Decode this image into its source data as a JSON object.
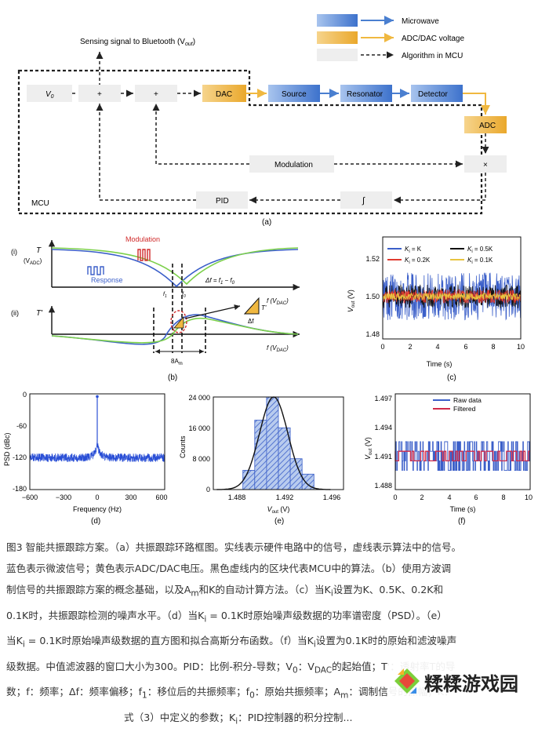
{
  "panel_a": {
    "legend": {
      "microwave": "Microwave",
      "adc_dac": "ADC/DAC voltage",
      "algorithm": "Algorithm in MCU"
    },
    "sensing": "Sensing signal to Bluetooth (V",
    "sensing_sub": "out",
    "sensing_close": ")",
    "v0": "V",
    "v0_sub": "0",
    "plus1": "+",
    "plus2": "+",
    "dac": "DAC",
    "source": "Source",
    "resonator": "Resonator",
    "detector": "Detector",
    "adc": "ADC",
    "modulation": "Modulation",
    "times": "×",
    "mcu": "MCU",
    "pid": "PID",
    "integral": "∫",
    "label": "(a)",
    "colors": {
      "microwave": "#4a7fd0",
      "adc_dac": "#f0b840",
      "box": "#eeeeee"
    }
  },
  "panel_b": {
    "i_label": "(i)",
    "ii_label": "(ii)",
    "T": "T",
    "T_unit": "(V",
    "T_unit_sub": "ADC",
    "T_unit_close": ")",
    "Tprime": "T'",
    "modulation": "Modulation",
    "response": "Response",
    "delta_f": "Δf = f",
    "delta_f_sub1": "1",
    "delta_f_mid": " − f",
    "delta_f_sub2": "0",
    "f1": "f",
    "f1_sub": "1",
    "f0": "f",
    "f0_sub": "0",
    "faxis": "f (V",
    "faxis_sub": "DAC",
    "faxis_close": ")",
    "tri_T": "T'",
    "tri_df": "Δf",
    "width": "8A",
    "width_sub": "m",
    "label": "(b)"
  },
  "panel_c": {
    "ylabel": "V",
    "ylabel_sub": "out",
    "ylabel_unit": " (V)",
    "xlabel": "Time (s)",
    "yticks": [
      "1.52",
      "1.50",
      "1.48"
    ],
    "xticks": [
      "0",
      "2",
      "4",
      "6",
      "8",
      "10"
    ],
    "legend": [
      {
        "name": "K",
        "sub": "i",
        "eq": " = K",
        "color": "#3b5fc9"
      },
      {
        "name": "K",
        "sub": "i",
        "eq": " = 0.5K",
        "color": "#111111"
      },
      {
        "name": "K",
        "sub": "i",
        "eq": " = 0.2K",
        "color": "#e03a2f"
      },
      {
        "name": "K",
        "sub": "i",
        "eq": " = 0.1K",
        "color": "#e8c440"
      }
    ],
    "label": "(c)"
  },
  "panel_d": {
    "ylabel": "PSD (dBc)",
    "xlabel": "Frequency (Hz)",
    "yticks": [
      "0",
      "-60",
      "-120",
      "-180"
    ],
    "xticks": [
      "−600",
      "−300",
      "0",
      "300",
      "600"
    ],
    "label": "(d)"
  },
  "panel_e": {
    "ylabel": "Counts",
    "xlabel": "V",
    "xlabel_sub": "out",
    "xlabel_unit": " (V)",
    "yticks": [
      "24 000",
      "16 000",
      "8 000",
      "0"
    ],
    "xticks": [
      "1.488",
      "1.492",
      "1.496"
    ],
    "label": "(e)"
  },
  "panel_f": {
    "ylabel": "V",
    "ylabel_sub": "out",
    "ylabel_unit": " (V)",
    "xlabel": "Time (s)",
    "yticks": [
      "1.497",
      "1.494",
      "1.491",
      "1.488"
    ],
    "xticks": [
      "0",
      "2",
      "4",
      "6",
      "8",
      "10"
    ],
    "legend": [
      "Raw data",
      "Filtered"
    ],
    "label": "(f)"
  },
  "chart_data": [
    {
      "type": "line",
      "panel": "c",
      "xlabel": "Time (s)",
      "ylabel": "Vout (V)",
      "xlim": [
        0,
        10
      ],
      "ylim": [
        1.47,
        1.53
      ],
      "series": [
        {
          "name": "Ki = K",
          "mean": 1.495,
          "spread": 0.014
        },
        {
          "name": "Ki = 0.5K",
          "mean": 1.495,
          "spread": 0.007
        },
        {
          "name": "Ki = 0.2K",
          "mean": 1.495,
          "spread": 0.004
        },
        {
          "name": "Ki = 0.1K",
          "mean": 1.495,
          "spread": 0.002
        }
      ]
    },
    {
      "type": "line",
      "panel": "d",
      "xlabel": "Frequency (Hz)",
      "ylabel": "PSD (dBc)",
      "xlim": [
        -600,
        600
      ],
      "ylim": [
        -180,
        0
      ],
      "noise_floor": -120,
      "peak": -5
    },
    {
      "type": "bar",
      "panel": "e",
      "xlabel": "Vout (V)",
      "ylabel": "Counts",
      "xlim": [
        1.486,
        1.497
      ],
      "ylim": [
        0,
        24000
      ],
      "bins": [
        1.489,
        1.49,
        1.491,
        1.492,
        1.493,
        1.494
      ],
      "values": [
        5000,
        18000,
        24000,
        16000,
        8000,
        4000
      ],
      "gauss": {
        "mu": 1.4911,
        "sigma": 0.0012,
        "peak": 24000
      }
    },
    {
      "type": "line",
      "panel": "f",
      "xlabel": "Time (s)",
      "ylabel": "Vout (V)",
      "xlim": [
        0,
        10
      ],
      "ylim": [
        1.4875,
        1.4975
      ],
      "levels": [
        1.4895,
        1.4905,
        1.4915,
        1.4925
      ],
      "series": [
        {
          "name": "Raw data"
        },
        {
          "name": "Filtered"
        }
      ]
    }
  ],
  "caption": {
    "line1": "图3 智能共振跟踪方案。（a）共振跟踪环路框图。实线表示硬件电路中的信号，虚线表示算法中的信号。",
    "line2": "蓝色表示微波信号；黄色表示ADC/DAC电压。黑色虚线内的区块代表MCU中的算法。（b）使用方波调",
    "line3": "制信号的共振跟踪方案的概念基础，以及A",
    "line3_sub": "m",
    "line3_b": "和K的自动计算方法。（c）当K",
    "line3_sub2": "i",
    "line3_c": "设置为K、0.5K、0.2K和",
    "line4": "0.1K时，共振跟踪检测的噪声水平。（d）当K",
    "line4_sub": "i",
    "line4_b": " = 0.1K时原始噪声级数据的功率谱密度（PSD）。（e）",
    "line5": "当K",
    "line5_sub": "i",
    "line5_b": " = 0.1K时原始噪声级数据的直方图和拟合高斯分布函数。（f）当K",
    "line5_sub2": "i",
    "line5_c": "设置为0.1K时的原始和滤波噪声",
    "line6": "级数据。中值滤波器的窗口大小为300。PID：比例-积分-导数；V",
    "line6_sub": "0",
    "line6_b": "：V",
    "line6_sub2": "DAC",
    "line6_c": "的起始值；T'：透射率T的导",
    "line7": "数；f：频率；Δf：频率偏移；f",
    "line7_sub": "1",
    "line7_b": "：移位后的共振频率；f",
    "line7_sub2": "0",
    "line7_c": "：原始共振频率；A",
    "line7_sub3": "m",
    "line7_d": "：调制信号的振幅；K：",
    "line8": "式（3）中定义的参数；K",
    "line8_sub": "i",
    "line8_b": "：PID控制器的积分控制..."
  },
  "watermark": {
    "text": "糅糅游戏园"
  }
}
